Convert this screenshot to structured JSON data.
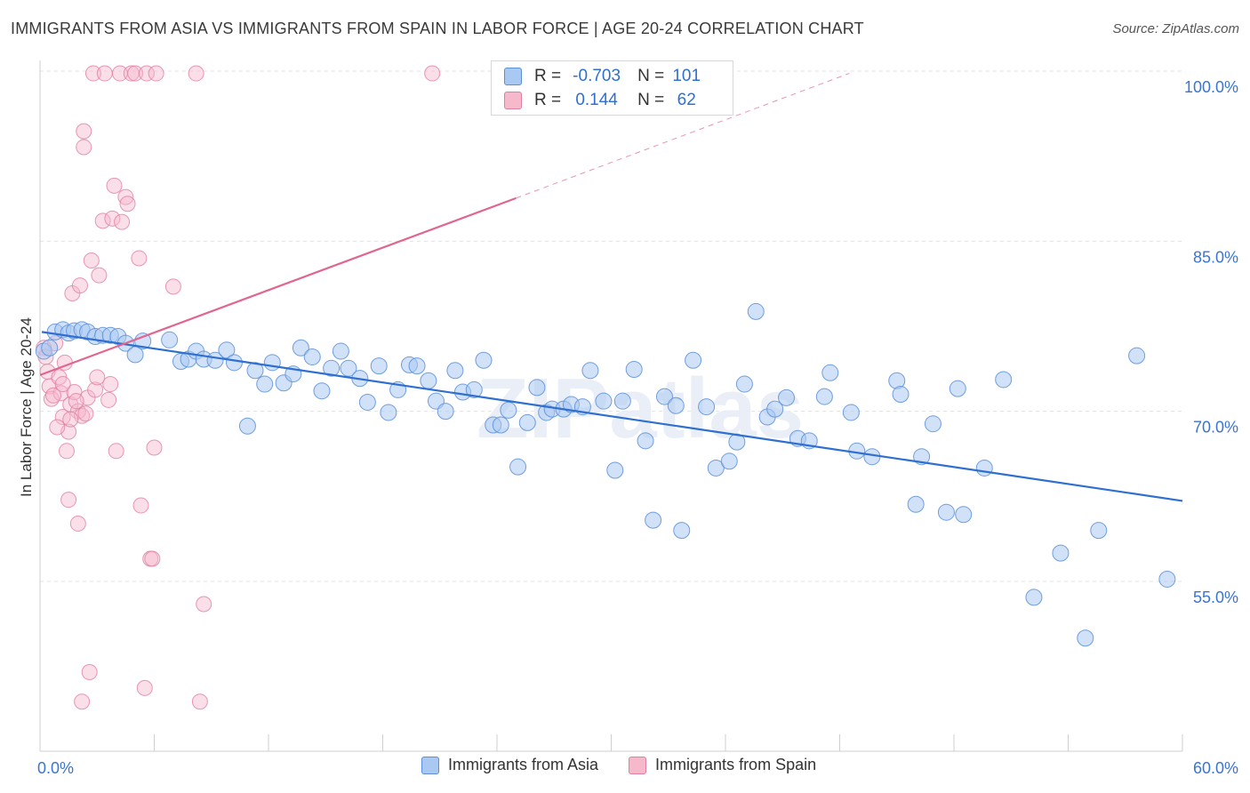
{
  "title": "IMMIGRANTS FROM ASIA VS IMMIGRANTS FROM SPAIN IN LABOR FORCE | AGE 20-24 CORRELATION CHART",
  "source": "Source: ZipAtlas.com",
  "watermark": "ZIPatlas",
  "colors": {
    "asia_fill": "#a9c8f2",
    "asia_stroke": "#5b8fd8",
    "asia_line": "#2f6fd0",
    "spain_fill": "#f6b8cb",
    "spain_stroke": "#e07fa0",
    "spain_line": "#e0668f",
    "tick_text": "#3b74d1",
    "grid": "#e3e3e3"
  },
  "legend": {
    "rows": [
      {
        "r_label": "R =",
        "r_value": "-0.703",
        "n_label": "N =",
        "n_value": "101",
        "series": "asia"
      },
      {
        "r_label": "R =",
        "r_value": "0.144",
        "n_label": "N =",
        "n_value": "62",
        "series": "spain"
      }
    ]
  },
  "chart_data": {
    "type": "scatter",
    "xlabel": "",
    "ylabel": "In Labor Force | Age 20-24",
    "xlim": [
      0,
      60
    ],
    "ylim": [
      40,
      100
    ],
    "x_tick_labels": [
      "0.0%",
      "60.0%"
    ],
    "y_ticks": [
      55,
      70,
      85,
      100
    ],
    "y_tick_labels": [
      "55.0%",
      "70.0%",
      "85.0%",
      "100.0%"
    ],
    "grid": true,
    "legend_position": "bottom-center",
    "series": [
      {
        "name": "Immigrants from Asia",
        "key": "asia",
        "trend": {
          "x": [
            0,
            60
          ],
          "y": [
            77.0,
            62.1
          ]
        },
        "points": [
          [
            0.2,
            75.3
          ],
          [
            0.5,
            75.6
          ],
          [
            0.8,
            77.0
          ],
          [
            1.2,
            77.2
          ],
          [
            1.5,
            76.9
          ],
          [
            1.8,
            77.1
          ],
          [
            2.2,
            77.2
          ],
          [
            2.5,
            77.0
          ],
          [
            2.9,
            76.6
          ],
          [
            3.3,
            76.7
          ],
          [
            3.7,
            76.7
          ],
          [
            4.1,
            76.6
          ],
          [
            4.5,
            76.0
          ],
          [
            5.0,
            75.0
          ],
          [
            5.4,
            76.2
          ],
          [
            6.8,
            76.3
          ],
          [
            7.4,
            74.4
          ],
          [
            7.8,
            74.6
          ],
          [
            8.2,
            75.3
          ],
          [
            8.6,
            74.6
          ],
          [
            9.2,
            74.5
          ],
          [
            9.8,
            75.4
          ],
          [
            10.2,
            74.3
          ],
          [
            10.9,
            68.7
          ],
          [
            11.3,
            73.6
          ],
          [
            11.8,
            72.4
          ],
          [
            12.2,
            74.3
          ],
          [
            12.8,
            72.5
          ],
          [
            13.3,
            73.3
          ],
          [
            13.7,
            75.6
          ],
          [
            14.3,
            74.8
          ],
          [
            14.8,
            71.8
          ],
          [
            15.3,
            73.8
          ],
          [
            15.8,
            75.3
          ],
          [
            16.2,
            73.8
          ],
          [
            16.8,
            72.9
          ],
          [
            17.2,
            70.8
          ],
          [
            17.8,
            74.0
          ],
          [
            18.3,
            69.9
          ],
          [
            18.8,
            71.9
          ],
          [
            19.4,
            74.1
          ],
          [
            19.8,
            74.0
          ],
          [
            20.4,
            72.7
          ],
          [
            20.8,
            70.9
          ],
          [
            21.3,
            70.0
          ],
          [
            21.8,
            73.6
          ],
          [
            22.2,
            71.7
          ],
          [
            22.8,
            71.9
          ],
          [
            23.3,
            74.5
          ],
          [
            23.8,
            68.8
          ],
          [
            24.2,
            68.8
          ],
          [
            24.6,
            70.1
          ],
          [
            25.1,
            65.1
          ],
          [
            25.6,
            69.0
          ],
          [
            26.1,
            72.1
          ],
          [
            26.6,
            69.9
          ],
          [
            26.9,
            70.2
          ],
          [
            27.5,
            70.2
          ],
          [
            27.9,
            70.6
          ],
          [
            28.5,
            70.4
          ],
          [
            28.9,
            73.6
          ],
          [
            29.6,
            70.9
          ],
          [
            30.2,
            64.8
          ],
          [
            30.6,
            70.9
          ],
          [
            31.2,
            73.7
          ],
          [
            31.8,
            67.4
          ],
          [
            32.2,
            60.4
          ],
          [
            32.8,
            71.3
          ],
          [
            33.4,
            70.5
          ],
          [
            33.7,
            59.5
          ],
          [
            34.3,
            74.5
          ],
          [
            35.0,
            70.4
          ],
          [
            35.5,
            65.0
          ],
          [
            36.2,
            65.6
          ],
          [
            36.6,
            67.3
          ],
          [
            37.0,
            72.4
          ],
          [
            37.6,
            78.8
          ],
          [
            38.2,
            69.5
          ],
          [
            38.6,
            70.2
          ],
          [
            39.2,
            71.2
          ],
          [
            39.8,
            67.6
          ],
          [
            40.4,
            67.4
          ],
          [
            41.2,
            71.3
          ],
          [
            41.5,
            73.4
          ],
          [
            42.6,
            69.9
          ],
          [
            42.9,
            66.5
          ],
          [
            43.7,
            66.0
          ],
          [
            45.0,
            72.7
          ],
          [
            45.2,
            71.5
          ],
          [
            46.0,
            61.8
          ],
          [
            46.3,
            66.0
          ],
          [
            46.9,
            68.9
          ],
          [
            47.6,
            61.1
          ],
          [
            48.2,
            72.0
          ],
          [
            48.5,
            60.9
          ],
          [
            49.6,
            65.0
          ],
          [
            50.6,
            72.8
          ],
          [
            52.2,
            53.6
          ],
          [
            53.6,
            57.5
          ],
          [
            54.9,
            50.0
          ],
          [
            55.6,
            59.5
          ],
          [
            57.6,
            74.9
          ],
          [
            59.2,
            55.2
          ]
        ]
      },
      {
        "name": "Immigrants from Spain",
        "key": "spain",
        "trend_solid": {
          "x": [
            0,
            25
          ],
          "y": [
            73.2,
            88.8
          ]
        },
        "trend_dashed": {
          "x": [
            25,
            42.5
          ],
          "y": [
            88.8,
            99.8
          ]
        },
        "points": [
          [
            0.2,
            75.6
          ],
          [
            0.3,
            74.8
          ],
          [
            0.4,
            73.5
          ],
          [
            0.5,
            72.2
          ],
          [
            0.6,
            71.1
          ],
          [
            0.8,
            76.0
          ],
          [
            1.0,
            73.0
          ],
          [
            1.1,
            71.6
          ],
          [
            1.2,
            69.5
          ],
          [
            1.3,
            74.3
          ],
          [
            1.4,
            66.5
          ],
          [
            1.5,
            68.2
          ],
          [
            1.6,
            70.6
          ],
          [
            1.7,
            80.4
          ],
          [
            1.8,
            71.7
          ],
          [
            2.0,
            70.0
          ],
          [
            2.1,
            81.1
          ],
          [
            2.2,
            69.6
          ],
          [
            2.3,
            93.3
          ],
          [
            2.3,
            94.7
          ],
          [
            2.4,
            69.8
          ],
          [
            2.5,
            71.2
          ],
          [
            2.7,
            83.3
          ],
          [
            2.8,
            99.8
          ],
          [
            2.9,
            71.9
          ],
          [
            3.0,
            73.0
          ],
          [
            3.1,
            82.0
          ],
          [
            3.3,
            86.8
          ],
          [
            3.6,
            71.0
          ],
          [
            3.7,
            72.4
          ],
          [
            3.8,
            87.0
          ],
          [
            3.9,
            89.9
          ],
          [
            4.0,
            66.5
          ],
          [
            4.2,
            99.8
          ],
          [
            4.3,
            86.7
          ],
          [
            4.5,
            88.9
          ],
          [
            4.6,
            88.3
          ],
          [
            4.8,
            99.8
          ],
          [
            5.0,
            99.8
          ],
          [
            5.2,
            83.5
          ],
          [
            5.3,
            61.7
          ],
          [
            5.5,
            45.6
          ],
          [
            5.6,
            99.8
          ],
          [
            5.8,
            57.0
          ],
          [
            5.9,
            57.0
          ],
          [
            6.0,
            66.8
          ],
          [
            6.1,
            99.8
          ],
          [
            7.0,
            81.0
          ],
          [
            8.2,
            99.8
          ],
          [
            8.4,
            44.4
          ],
          [
            8.6,
            53.0
          ],
          [
            1.5,
            62.2
          ],
          [
            2.0,
            60.1
          ],
          [
            2.2,
            44.4
          ],
          [
            2.6,
            47.0
          ],
          [
            1.9,
            70.9
          ],
          [
            0.7,
            71.4
          ],
          [
            1.2,
            72.4
          ],
          [
            0.9,
            68.6
          ],
          [
            1.6,
            69.3
          ],
          [
            20.6,
            99.8
          ],
          [
            3.4,
            99.8
          ]
        ]
      }
    ]
  }
}
